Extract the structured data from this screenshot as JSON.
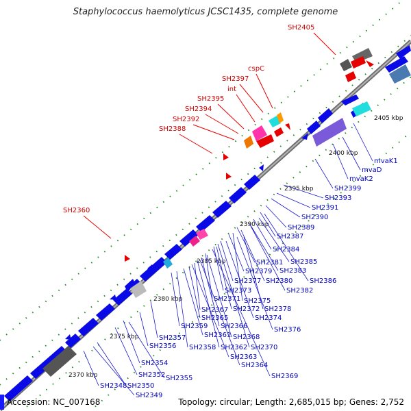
{
  "title": "Staphylococcus haemolyticus JCSC1435, complete genome",
  "footer": {
    "accession": "Accession: NC_007168",
    "summary": "Topology: circular; Length: 2,685,015 bp; Genes: 2,752"
  },
  "colors": {
    "forward_gene": "#0a0ae6",
    "highlight_label": "#d40000",
    "gene_label": "#0000c0",
    "backbone": "#888888"
  },
  "kbp_labels": [
    "2370 kbp",
    "2375 kbp",
    "2380 kbp",
    "2385 kbp",
    "2390 kbp",
    "2395 kbp",
    "2400 kbp",
    "2405 kbp"
  ],
  "highlight_labels": [
    "SH2405",
    "cspC",
    "SH2397",
    "int",
    "SH2395",
    "SH2394",
    "SH2392",
    "SH2388",
    "SH2360"
  ],
  "gene_labels": [
    "mvaK1",
    "mvaD",
    "mvaK2",
    "SH2399",
    "SH2393",
    "SH2391",
    "SH2390",
    "SH2389",
    "SH2387",
    "SH2384",
    "SH2385",
    "SH2381",
    "SH2383",
    "SH2386",
    "SH2379",
    "SH2380",
    "SH2382",
    "SH2377",
    "SH2375",
    "SH2373",
    "SH2378",
    "SH2371",
    "SH2372",
    "SH2374",
    "SH2367",
    "SH2365",
    "SH2366",
    "SH2376",
    "SH2359",
    "SH2361",
    "SH2368",
    "SH2357",
    "SH2358",
    "SH2362",
    "SH2370",
    "SH2356",
    "SH2363",
    "SH2364",
    "SH2354",
    "SH2369",
    "SH2352",
    "SH2355",
    "SH2350",
    "SH2348",
    "SH2349"
  ]
}
